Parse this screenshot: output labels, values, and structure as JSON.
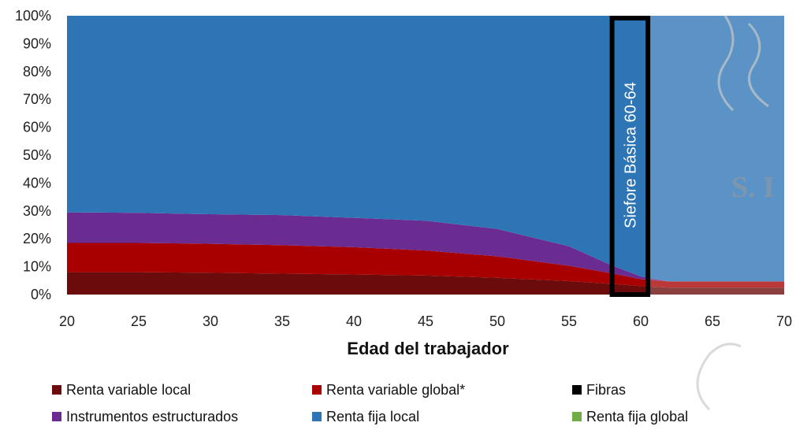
{
  "chart_data": {
    "type": "area",
    "stacked": true,
    "xlabel": "Edad del trabajador",
    "x_ticks": [
      20,
      25,
      30,
      35,
      40,
      45,
      50,
      55,
      60,
      65,
      70
    ],
    "y_ticks": [
      "0%",
      "10%",
      "20%",
      "30%",
      "40%",
      "50%",
      "60%",
      "70%",
      "80%",
      "90%",
      "100%"
    ],
    "xlim": [
      20,
      70
    ],
    "ylim": [
      0,
      100
    ],
    "x": [
      20,
      25,
      30,
      35,
      40,
      45,
      50,
      55,
      58,
      60,
      62,
      65,
      70
    ],
    "series": [
      {
        "name": "Renta variable local",
        "color": "#6b0b0b",
        "values": [
          8,
          8,
          7.8,
          7.5,
          7.2,
          6.8,
          6,
          4.8,
          3.8,
          3,
          2.5,
          2.5,
          2.5
        ]
      },
      {
        "name": "Renta variable global*",
        "color": "#a80000",
        "values": [
          10.5,
          10.5,
          10.4,
          10.2,
          9.8,
          9,
          7.7,
          5.5,
          3.8,
          2.5,
          2.2,
          2.2,
          2.2
        ]
      },
      {
        "name": "Fibras",
        "color": "#000000",
        "values": [
          0,
          0,
          0,
          0,
          0,
          0,
          0,
          0,
          0,
          0,
          0,
          0,
          0
        ]
      },
      {
        "name": "Instrumentos estructurados",
        "color": "#6a2c91",
        "values": [
          11,
          10.8,
          10.6,
          10.8,
          10.5,
          10.7,
          9.8,
          7,
          2.8,
          1,
          0,
          0,
          0
        ]
      },
      {
        "name": "Renta fija local",
        "color": "#2e75b6",
        "values": [
          70.5,
          70.7,
          71.2,
          71.5,
          72.5,
          73.5,
          76.5,
          82.7,
          89.6,
          93.5,
          95.3,
          95.3,
          95.3
        ]
      },
      {
        "name": "Renta fija global",
        "color": "#70ad47",
        "values": [
          0,
          0,
          0,
          0,
          0,
          0,
          0,
          0,
          0,
          0,
          0,
          0,
          0
        ]
      }
    ],
    "annotation": {
      "text": "Siefore Básica 60-64",
      "x_range": [
        58,
        60.5
      ]
    },
    "legend_position": "bottom"
  }
}
